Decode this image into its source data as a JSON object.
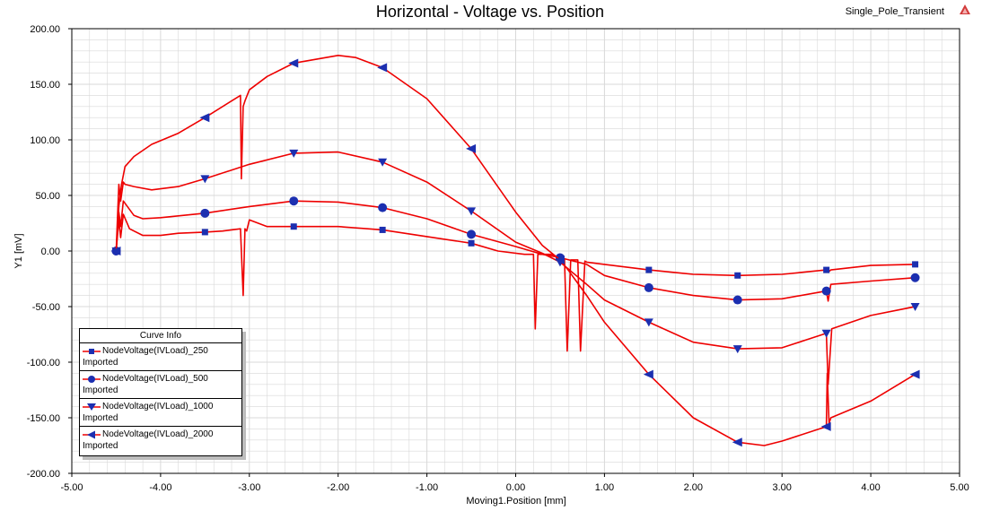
{
  "window": {
    "design_name": "Single_Pole_Transient",
    "icon": "ansys-logo-icon"
  },
  "colors": {
    "curve": "#ee0000",
    "marker": "#1c2fb0",
    "grid": "#d8d8d8",
    "axis": "#000000"
  },
  "legend": {
    "title": "Curve Info",
    "placement": "bottom-left",
    "entries": [
      {
        "name": "NodeVoltage(IVLoad)_250",
        "source": "Imported",
        "marker": "square"
      },
      {
        "name": "NodeVoltage(IVLoad)_500",
        "source": "Imported",
        "marker": "circle"
      },
      {
        "name": "NodeVoltage(IVLoad)_1000",
        "source": "Imported",
        "marker": "triangle-down"
      },
      {
        "name": "NodeVoltage(IVLoad)_2000",
        "source": "Imported",
        "marker": "triangle-left"
      }
    ]
  },
  "chart_data": {
    "type": "line",
    "title": "Horizontal - Voltage vs. Position",
    "xlabel": "Moving1.Position [mm]",
    "ylabel": "Y1 [mV]",
    "xlim": [
      -5,
      5
    ],
    "ylim": [
      -200,
      200
    ],
    "x_ticks": [
      "-5.00",
      "-4.00",
      "-3.00",
      "-2.00",
      "-1.00",
      "0.00",
      "1.00",
      "2.00",
      "3.00",
      "4.00",
      "5.00"
    ],
    "y_ticks": [
      "200.00",
      "150.00",
      "100.00",
      "50.00",
      "0.00",
      "-50.00",
      "-100.00",
      "-150.00",
      "-200.00"
    ],
    "grid": true,
    "series": [
      {
        "name": "NodeVoltage(IVLoad)_250",
        "marker": "square",
        "markers_x": [
          -4.5,
          -3.5,
          -2.5,
          -1.5,
          -0.5,
          0.5,
          1.5,
          2.5,
          3.5,
          4.5
        ],
        "x": [
          -4.5,
          -4.47,
          -4.45,
          -4.42,
          -4.35,
          -4.2,
          -4.0,
          -3.8,
          -3.5,
          -3.3,
          -3.1,
          -3.07,
          -3.05,
          -3.03,
          -3.0,
          -2.8,
          -2.5,
          -2.0,
          -1.5,
          -1.0,
          -0.5,
          -0.2,
          0.1,
          0.2,
          0.22,
          0.25,
          0.4,
          0.5,
          0.55,
          0.58,
          0.62,
          0.7,
          0.73,
          0.78,
          0.8,
          1.0,
          1.5,
          2.0,
          2.5,
          3.0,
          3.5,
          3.52,
          3.55,
          4.0,
          4.5
        ],
        "y": [
          0,
          28,
          12,
          33,
          20,
          14,
          14,
          16,
          17,
          18,
          20,
          -40,
          20,
          18,
          28,
          22,
          22,
          22,
          19,
          13,
          7,
          0,
          -3,
          -3,
          -70,
          -3,
          -3,
          -6,
          -8,
          -90,
          -8,
          -8,
          -90,
          -9,
          -10,
          -12,
          -17,
          -21,
          -22,
          -21,
          -17,
          -19,
          -17,
          -13,
          -12
        ]
      },
      {
        "name": "NodeVoltage(IVLoad)_500",
        "marker": "circle",
        "markers_x": [
          -4.5,
          -3.5,
          -2.5,
          -1.5,
          -0.5,
          0.5,
          1.5,
          2.5,
          3.5,
          4.5
        ],
        "x": [
          -4.5,
          -4.47,
          -4.45,
          -4.42,
          -4.3,
          -4.2,
          -4.0,
          -3.5,
          -3.0,
          -2.5,
          -2.0,
          -1.5,
          -1.0,
          -0.5,
          0.0,
          0.3,
          0.5,
          0.8,
          1.0,
          1.5,
          2.0,
          2.5,
          3.0,
          3.5,
          3.52,
          3.55,
          4.0,
          4.5
        ],
        "y": [
          0,
          35,
          22,
          45,
          32,
          29,
          30,
          34,
          40,
          45,
          44,
          39,
          29,
          15,
          4,
          -3,
          -6,
          -12,
          -22,
          -33,
          -40,
          -44,
          -43,
          -36,
          -45,
          -30,
          -27,
          -24
        ]
      },
      {
        "name": "NodeVoltage(IVLoad)_1000",
        "marker": "triangle-down",
        "markers_x": [
          -4.5,
          -3.5,
          -2.5,
          -1.5,
          -0.5,
          0.5,
          1.5,
          2.5,
          3.5,
          4.5
        ],
        "x": [
          -4.5,
          -4.47,
          -4.45,
          -4.42,
          -4.4,
          -4.3,
          -4.1,
          -3.8,
          -3.5,
          -3.0,
          -2.5,
          -2.0,
          -1.5,
          -1.0,
          -0.5,
          0.0,
          0.3,
          0.5,
          0.8,
          1.0,
          1.5,
          2.0,
          2.5,
          3.0,
          3.5,
          3.52,
          3.56,
          4.0,
          4.5
        ],
        "y": [
          0,
          60,
          45,
          62,
          60,
          58,
          55,
          58,
          65,
          78,
          88,
          89,
          80,
          62,
          36,
          8,
          -2,
          -10,
          -30,
          -44,
          -64,
          -82,
          -88,
          -87,
          -74,
          -120,
          -70,
          -58,
          -50
        ]
      },
      {
        "name": "NodeVoltage(IVLoad)_2000",
        "marker": "triangle-left",
        "markers_x": [
          -4.5,
          -3.5,
          -2.5,
          -1.5,
          -0.5,
          0.5,
          1.5,
          2.5,
          3.5,
          4.5
        ],
        "x": [
          -4.5,
          -4.47,
          -4.44,
          -4.4,
          -4.3,
          -4.1,
          -3.8,
          -3.5,
          -3.2,
          -3.1,
          -3.09,
          -3.07,
          -3.05,
          -3.0,
          -2.8,
          -2.5,
          -2.0,
          -1.8,
          -1.5,
          -1.0,
          -0.5,
          0.0,
          0.3,
          0.5,
          0.6,
          0.8,
          1.0,
          1.5,
          2.0,
          2.5,
          2.8,
          3.0,
          3.5,
          3.51,
          3.53,
          3.55,
          4.0,
          4.5
        ],
        "y": [
          0,
          40,
          60,
          76,
          85,
          96,
          106,
          120,
          135,
          140,
          65,
          130,
          135,
          145,
          157,
          169,
          176,
          174,
          165,
          137,
          92,
          35,
          5,
          -8,
          -18,
          -40,
          -64,
          -111,
          -150,
          -172,
          -175,
          -171,
          -158,
          -110,
          -155,
          -150,
          -135,
          -111
        ]
      }
    ]
  }
}
